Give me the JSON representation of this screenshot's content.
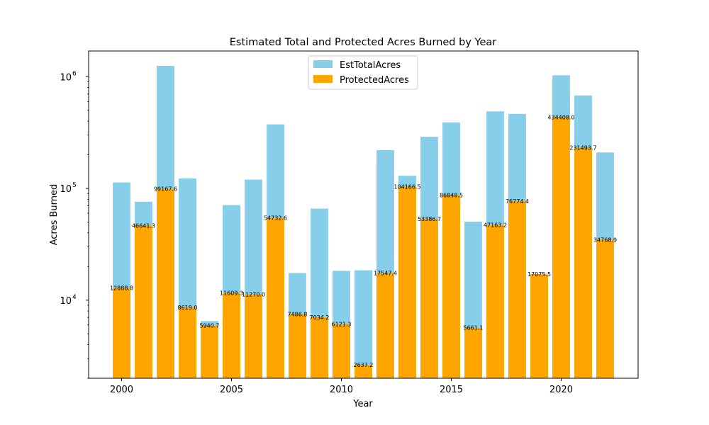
{
  "chart_data": {
    "type": "bar",
    "title": "Estimated Total and Protected Acres Burned by Year",
    "xlabel": "Year",
    "ylabel": "Acres Burned",
    "yscale": "log",
    "ylim": [
      2000,
      1700000
    ],
    "xlim": [
      1998.5,
      2023.5
    ],
    "grid": false,
    "legend_position": "upper-center",
    "x": [
      2000,
      2001,
      2002,
      2003,
      2004,
      2005,
      2006,
      2007,
      2008,
      2009,
      2010,
      2011,
      2012,
      2013,
      2014,
      2015,
      2016,
      2017,
      2018,
      2019,
      2020,
      2021,
      2022
    ],
    "x_ticks": [
      2000,
      2005,
      2010,
      2015,
      2020
    ],
    "y_ticks": [
      {
        "value": 10000,
        "base": "10",
        "exp": "4"
      },
      {
        "value": 100000,
        "base": "10",
        "exp": "5"
      },
      {
        "value": 1000000,
        "base": "10",
        "exp": "6"
      }
    ],
    "series": [
      {
        "name": "EstTotalAcres",
        "color": "#87CEEB",
        "values": [
          113000,
          76000,
          1250000,
          123000,
          6500,
          71000,
          120000,
          375000,
          17500,
          66000,
          18300,
          18500,
          220000,
          130000,
          290000,
          390000,
          50500,
          490000,
          465000,
          17100,
          1030000,
          680000,
          210000
        ]
      },
      {
        "name": "ProtectedAcres",
        "color": "#FFA500",
        "values": [
          12888.8,
          46641.3,
          99167.6,
          8619.0,
          5940.7,
          11609.3,
          11270.0,
          54732.6,
          7486.8,
          7034.2,
          6121.3,
          2637.2,
          17547.4,
          104166.5,
          53386.7,
          86848.5,
          5661.1,
          47163.2,
          76774.4,
          17075.5,
          434408.0,
          231493.7,
          34768.9
        ],
        "labels": [
          "12888.8",
          "46641.3",
          "99167.6",
          "8619.0",
          "5940.7",
          "11609.3",
          "11270.0",
          "54732.6",
          "7486.8",
          "7034.2",
          "6121.3",
          "2637.2",
          "17547.4",
          "104166.5",
          "53386.7",
          "86848.5",
          "5661.1",
          "47163.2",
          "76774.4",
          "17075.5",
          "434408.0",
          "231493.7",
          "34768.9"
        ]
      }
    ]
  }
}
